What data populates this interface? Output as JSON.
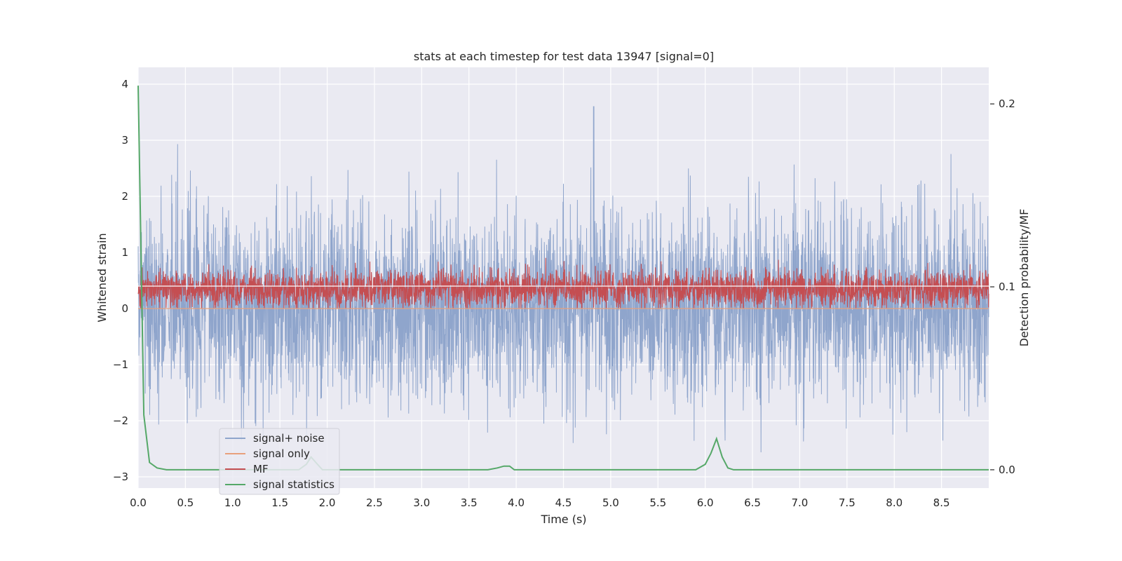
{
  "chart_data": {
    "type": "line",
    "title": "stats at each timestep for test data 13947 [signal=0]",
    "xlabel": "Time (s)",
    "ylabel": "Whitened strain",
    "ylabel_right": "Detection probability/MF",
    "xlim": [
      0.0,
      9.0
    ],
    "ylim": [
      -3.2,
      4.3
    ],
    "ylim_right": [
      -0.01,
      0.22
    ],
    "x_ticks": [
      "0.0",
      "0.5",
      "1.0",
      "1.5",
      "2.0",
      "2.5",
      "3.0",
      "3.5",
      "4.0",
      "4.5",
      "5.0",
      "5.5",
      "6.0",
      "6.5",
      "7.0",
      "7.5",
      "8.0",
      "8.5"
    ],
    "y_ticks": [
      "4",
      "3",
      "2",
      "1",
      "0",
      "−1",
      "−2",
      "−3"
    ],
    "y_right_ticks": [
      "0.2",
      "0.1",
      "0.0"
    ],
    "grid": true,
    "legend_position": "lower-left",
    "series": [
      {
        "name": "signal+ noise",
        "axis": "left",
        "color": "#8fa5cc",
        "style": "dense noise, approx. range -2.9 to 4.0 (peak 4.0 at t≈4.82)",
        "x": [
          0.0,
          0.5,
          1.0,
          1.5,
          2.0,
          2.5,
          3.0,
          3.5,
          4.0,
          4.5,
          5.0,
          5.5,
          6.0,
          6.5,
          7.0,
          7.5,
          8.0,
          8.5,
          9.0
        ],
        "values": [
          0.1,
          -0.3,
          0.4,
          -0.2,
          0.3,
          -0.1,
          0.2,
          -0.4,
          0.1,
          0.3,
          -0.2,
          0.2,
          -0.1,
          0.3,
          -0.3,
          0.1,
          0.2,
          -0.2,
          0.1
        ]
      },
      {
        "name": "signal only",
        "axis": "left",
        "color": "#e8a07c",
        "x": [
          0.0,
          9.0
        ],
        "values": [
          0.0,
          0.0
        ]
      },
      {
        "name": "MF",
        "axis": "left",
        "color": "#c44e52",
        "style": "dense band, approx. range 0.0 to 1.0 around 0.4",
        "x": [
          0.0,
          1.0,
          2.0,
          3.0,
          4.0,
          5.0,
          6.0,
          7.0,
          8.0,
          9.0
        ],
        "values": [
          0.4,
          0.4,
          0.4,
          0.4,
          0.4,
          0.4,
          0.4,
          0.4,
          0.4,
          0.4
        ]
      },
      {
        "name": "signal statistics",
        "axis": "right",
        "color": "#55a868",
        "x": [
          0.0,
          0.06,
          0.12,
          0.2,
          0.3,
          0.5,
          1.0,
          1.7,
          1.78,
          1.83,
          1.88,
          1.95,
          2.05,
          3.0,
          3.7,
          3.8,
          3.87,
          3.93,
          3.98,
          4.03,
          5.0,
          5.9,
          6.0,
          6.06,
          6.12,
          6.18,
          6.24,
          6.3,
          7.0,
          8.2,
          8.3,
          9.0
        ],
        "values": [
          0.21,
          0.03,
          0.004,
          0.001,
          0.0,
          0.0,
          0.0,
          0.0,
          0.003,
          0.007,
          0.004,
          0.0,
          0.0,
          0.0,
          0.0,
          0.001,
          0.002,
          0.002,
          0.0,
          0.0,
          0.0,
          0.0,
          0.003,
          0.009,
          0.017,
          0.007,
          0.001,
          0.0,
          0.0,
          0.0,
          0.0,
          0.0
        ]
      }
    ]
  }
}
